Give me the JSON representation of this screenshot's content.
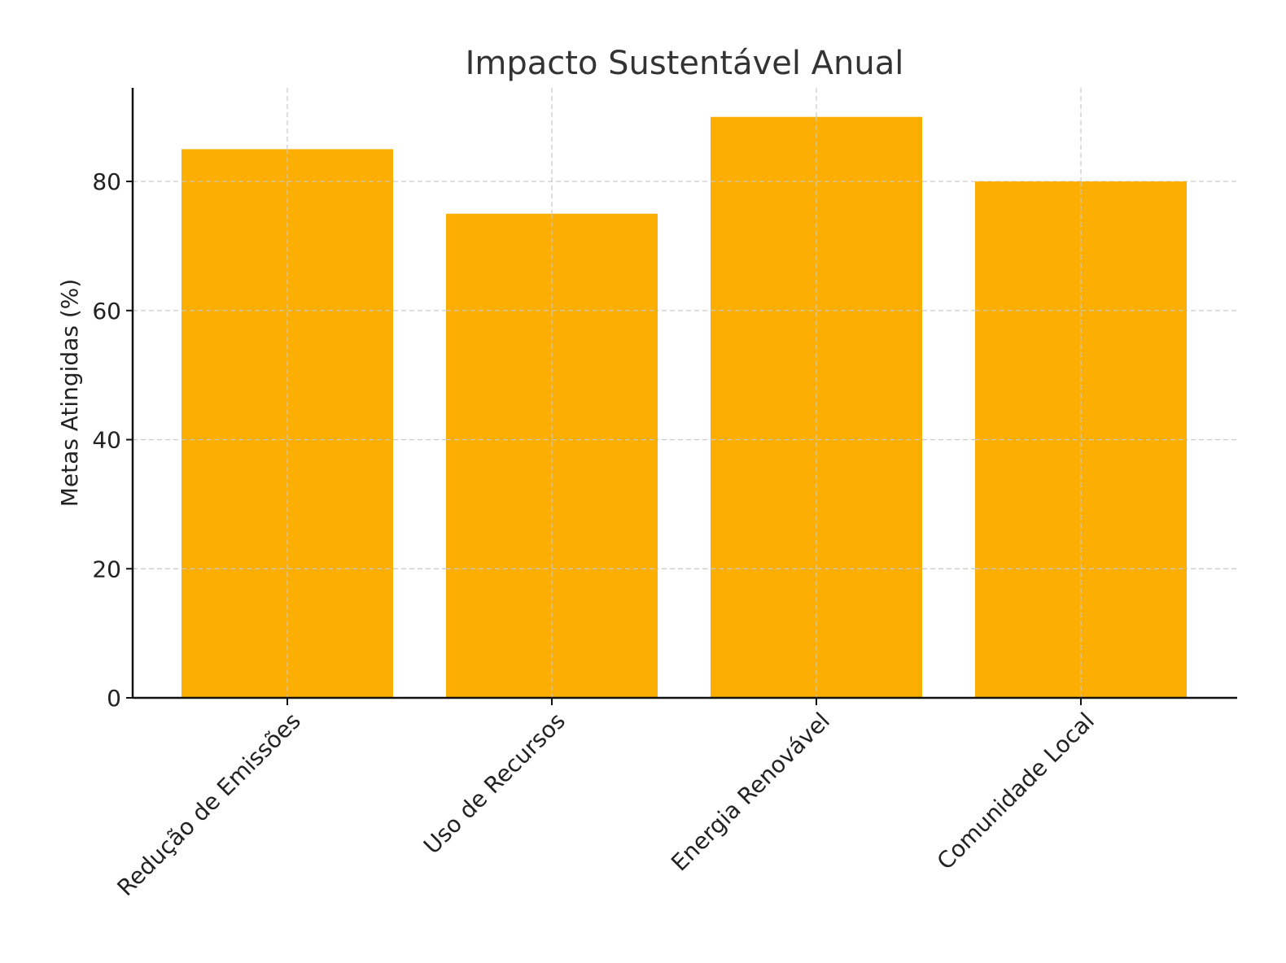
{
  "chart_data": {
    "type": "bar",
    "title": "Impacto Sustentável Anual",
    "xlabel": "",
    "ylabel": "Metas Atingidas (%)",
    "categories": [
      "Redução de Emissões",
      "Uso de Recursos",
      "Energia Renovável",
      "Comunidade Local"
    ],
    "values": [
      85,
      75,
      90,
      80
    ],
    "ylim": [
      0,
      94.5
    ],
    "yticks": [
      0,
      20,
      40,
      60,
      80
    ],
    "grid": true,
    "bar_color": "#FCAF02",
    "legend": "none"
  }
}
